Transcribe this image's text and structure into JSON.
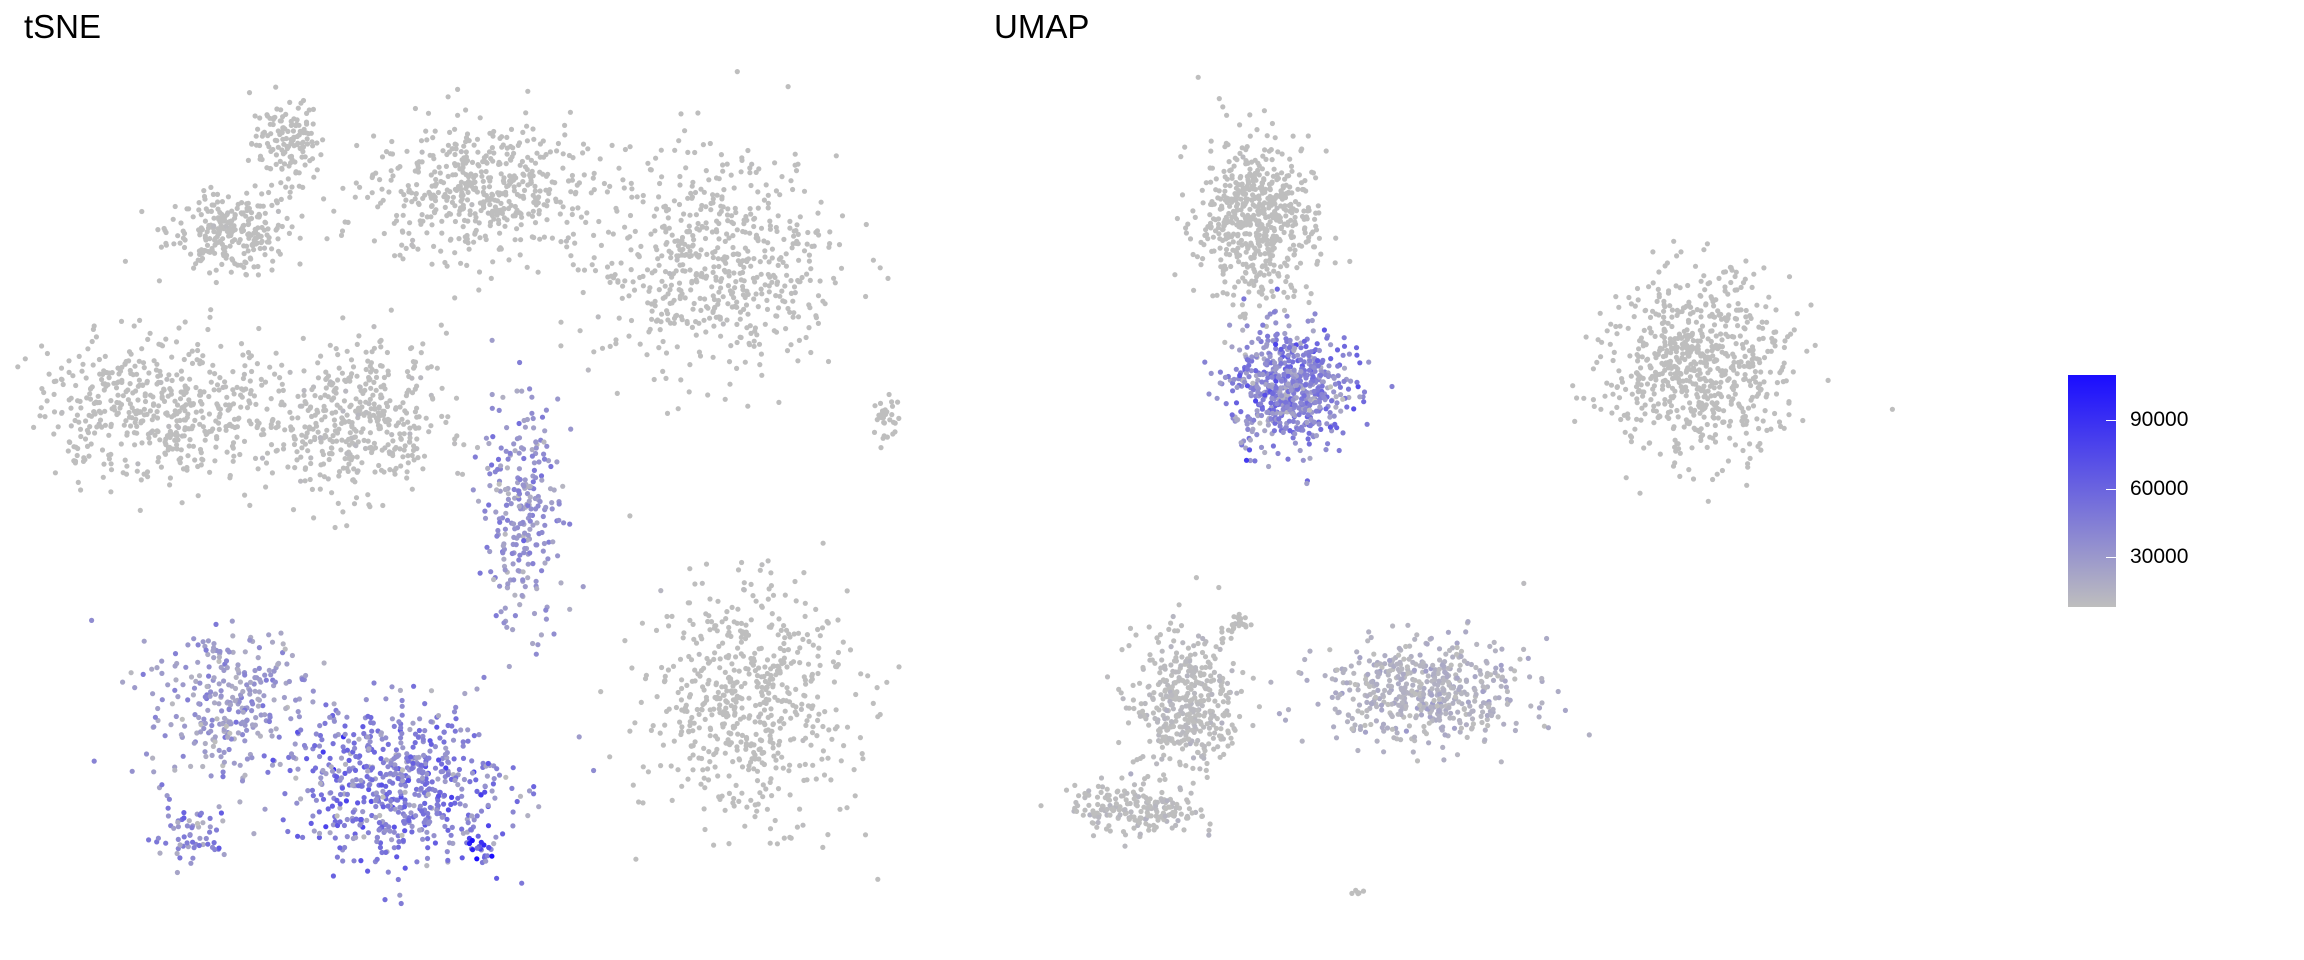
{
  "colors": {
    "low": "#bebebe",
    "high": "#1a0dff"
  },
  "chart_data": [
    {
      "type": "scatter",
      "title": "tSNE",
      "xlabel": "",
      "ylabel": "",
      "grid": false,
      "point_color_scale": "expression",
      "clusters": [
        {
          "label": "top-left-small",
          "cx": -33,
          "cy": 39,
          "sx": 3.5,
          "sy": 4.5,
          "n": 140,
          "value": 4000
        },
        {
          "label": "left-upper",
          "cx": -40,
          "cy": 28,
          "sx": 6,
          "sy": 4,
          "n": 260,
          "value": 5000
        },
        {
          "label": "top-center",
          "cx": -10,
          "cy": 33,
          "sx": 11,
          "sy": 7,
          "n": 520,
          "value": 5000
        },
        {
          "label": "top-right",
          "cx": 18,
          "cy": 24,
          "sx": 12,
          "sy": 11,
          "n": 620,
          "value": 5000
        },
        {
          "label": "left-mid",
          "cx": -48,
          "cy": 6,
          "sx": 12,
          "sy": 7,
          "n": 520,
          "value": 5000
        },
        {
          "label": "center-mid",
          "cx": -25,
          "cy": 5,
          "sx": 9,
          "sy": 8,
          "n": 440,
          "value": 6000
        },
        {
          "label": "center-strand",
          "cx": -5,
          "cy": -6,
          "sx": 4,
          "sy": 12,
          "n": 260,
          "value": 30000
        },
        {
          "label": "left-lower",
          "cx": -40,
          "cy": -30,
          "sx": 8,
          "sy": 8,
          "n": 300,
          "value": 28000
        },
        {
          "label": "bottom-center",
          "cx": -20,
          "cy": -40,
          "sx": 11,
          "sy": 8,
          "n": 620,
          "value": 42000
        },
        {
          "label": "bottom-left",
          "cx": -45,
          "cy": -46,
          "sx": 5,
          "sy": 3,
          "n": 60,
          "value": 38000
        },
        {
          "label": "right-lower",
          "cx": 22,
          "cy": -30,
          "sx": 10,
          "sy": 12,
          "n": 600,
          "value": 5000
        },
        {
          "label": "far-right-small",
          "cx": 38,
          "cy": 5,
          "sx": 1.5,
          "sy": 2.5,
          "n": 30,
          "value": 4000
        },
        {
          "label": "hotspot",
          "cx": -10,
          "cy": -48,
          "sx": 2,
          "sy": 2,
          "n": 25,
          "value": 85000
        }
      ],
      "xlim": [
        -60,
        40
      ],
      "ylim": [
        -58,
        46
      ]
    },
    {
      "type": "scatter",
      "title": "UMAP",
      "xlabel": "",
      "ylabel": "",
      "grid": false,
      "point_color_scale": "expression",
      "clusters": [
        {
          "label": "top-cluster",
          "cx": -4,
          "cy": 10,
          "sx": 1.4,
          "sy": 1.6,
          "n": 600,
          "value": 5000
        },
        {
          "label": "mid-cluster-purple",
          "cx": -3,
          "cy": 6,
          "sx": 1.4,
          "sy": 1.2,
          "n": 620,
          "value": 40000
        },
        {
          "label": "right-cluster",
          "cx": 9,
          "cy": 6.5,
          "sx": 2.2,
          "sy": 1.8,
          "n": 720,
          "value": 4000
        },
        {
          "label": "bottom-left-cluster",
          "cx": -6,
          "cy": -1.5,
          "sx": 1.3,
          "sy": 1.4,
          "n": 420,
          "value": 8000
        },
        {
          "label": "bottom-tail",
          "cx": -7.5,
          "cy": -4,
          "sx": 1.5,
          "sy": 0.5,
          "n": 200,
          "value": 8000
        },
        {
          "label": "bottom-right-clusters",
          "cx": 1,
          "cy": -1.2,
          "sx": 2.5,
          "sy": 1,
          "n": 520,
          "value": 14000
        },
        {
          "label": "small-island",
          "cx": -4.6,
          "cy": 0.4,
          "sx": 0.4,
          "sy": 0.2,
          "n": 25,
          "value": 5000
        },
        {
          "label": "tiny-bottom",
          "cx": -1,
          "cy": -6,
          "sx": 0.15,
          "sy": 0.1,
          "n": 6,
          "value": 5000
        }
      ],
      "xlim": [
        -10,
        14
      ],
      "ylim": [
        -7,
        13
      ]
    }
  ],
  "legend": {
    "ticks": [
      "30000",
      "60000",
      "90000"
    ],
    "tick_values": [
      30000,
      60000,
      90000
    ],
    "range": [
      8000,
      110000
    ]
  }
}
